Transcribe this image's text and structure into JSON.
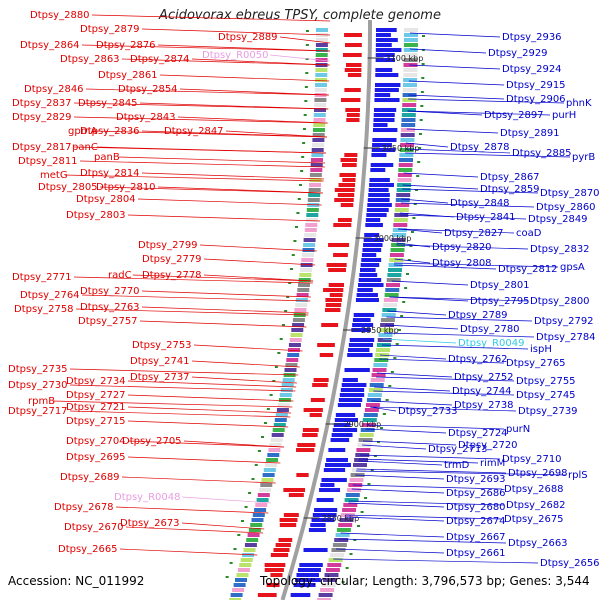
{
  "title": "Acidovorax ebreus TPSY, complete genome",
  "accession": "Accession: NC_011992",
  "topology": "Topology: circular; Length: 3,796,573 bp; Genes: 3,544",
  "colors": {
    "forward_gene": "#e8141b",
    "reverse_gene": "#1c1ce8",
    "forward_label": "#e00000",
    "reverse_label": "#0000cc",
    "rna_label_light": "#e79de0",
    "rna_label_cyan": "#30c8e8",
    "backbone": "#a0a0a0",
    "tick": "#2a8a2a"
  },
  "ticks": [
    "3100 kbp",
    "3050 kbp",
    "3000 kbp",
    "2950 kbp",
    "2900 kbp",
    "2850 kbp"
  ],
  "left_labels": [
    "Dtpsy_2880",
    "Dtpsy_2879",
    "Dtpsy_2864",
    "Dtpsy_2876",
    "Dtpsy_2863",
    "Dtpsy_2874",
    "Dtpsy_2861",
    "Dtpsy_2846",
    "Dtpsy_2854",
    "Dtpsy_2837",
    "Dtpsy_2845",
    "Dtpsy_2829",
    "Dtpsy_2843",
    "gpmA",
    "Dtpsy_2836",
    "Dtpsy_2847",
    "Dtpsy_2817",
    "panC",
    "Dtpsy_2811",
    "panB",
    "metG",
    "Dtpsy_2814",
    "Dtpsy_2805",
    "Dtpsy_2810",
    "Dtpsy_2804",
    "Dtpsy_2803",
    "Dtpsy_2799",
    "Dtpsy_2779",
    "radC",
    "Dtpsy_2778",
    "Dtpsy_2771",
    "Dtpsy_2770",
    "Dtpsy_2764",
    "Dtpsy_2763",
    "Dtpsy_2758",
    "Dtpsy_2757",
    "Dtpsy_2753",
    "Dtpsy_2741",
    "Dtpsy_2735",
    "Dtpsy_2737",
    "Dtpsy_2730",
    "Dtpsy_2734",
    "rpmB",
    "Dtpsy_2727",
    "Dtpsy_2717",
    "Dtpsy_2721",
    "Dtpsy_2715",
    "Dtpsy_2704",
    "Dtpsy_2705",
    "Dtpsy_2695",
    "Dtpsy_2689",
    "Dtpsy_R0048",
    "Dtpsy_2678",
    "Dtpsy_2673",
    "Dtpsy_2670",
    "Dtpsy_2665",
    "Dtpsy_2889",
    "Dtpsy_R0050"
  ],
  "right_labels": [
    "Dtpsy_2936",
    "Dtpsy_2929",
    "Dtpsy_2924",
    "Dtpsy_2915",
    "Dtpsy_2906",
    "phnK",
    "Dtpsy_2897",
    "purH",
    "Dtpsy_2891",
    "Dtpsy_2878",
    "Dtpsy_2885",
    "pyrB",
    "Dtpsy_2867",
    "Dtpsy_2859",
    "Dtpsy_2870",
    "Dtpsy_2848",
    "Dtpsy_2860",
    "Dtpsy_2841",
    "Dtpsy_2849",
    "Dtpsy_2827",
    "coaD",
    "Dtpsy_2820",
    "Dtpsy_2832",
    "Dtpsy_2808",
    "Dtpsy_2812",
    "gpsA",
    "Dtpsy_2801",
    "Dtpsy_2795",
    "Dtpsy_2800",
    "Dtpsy_2789",
    "Dtpsy_2792",
    "Dtpsy_2780",
    "Dtpsy_2784",
    "Dtpsy_R0049",
    "ispH",
    "Dtpsy_2762",
    "Dtpsy_2765",
    "Dtpsy_2752",
    "Dtpsy_2755",
    "Dtpsy_2744",
    "Dtpsy_2745",
    "Dtpsy_2738",
    "Dtpsy_2739",
    "Dtpsy_2733",
    "Dtpsy_2724",
    "purN",
    "Dtpsy_2720",
    "Dtpsy_2713",
    "Dtpsy_2710",
    "trmD",
    "rimM",
    "Dtpsy_2698",
    "rplS",
    "Dtpsy_2693",
    "Dtpsy_2688",
    "Dtpsy_2686",
    "Dtpsy_2682",
    "Dtpsy_2680",
    "Dtpsy_2675",
    "Dtpsy_2674",
    "Dtpsy_2667",
    "Dtpsy_2663",
    "Dtpsy_2661",
    "Dtpsy_2656"
  ]
}
